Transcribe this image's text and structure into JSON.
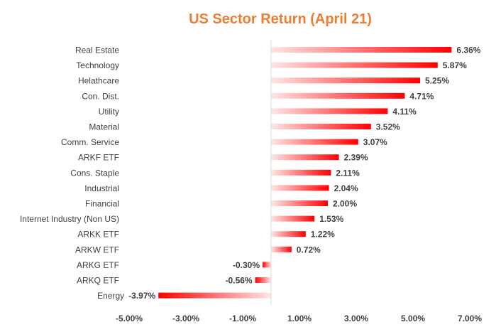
{
  "chart_data": {
    "type": "bar",
    "orientation": "horizontal",
    "title": "US Sector Return (April 21)",
    "categories": [
      "Real Estate",
      "Technology",
      "Helathcare",
      "Con. Dist.",
      "Utility",
      "Material",
      "Comm. Service",
      "ARKF ETF",
      "Cons. Staple",
      "Industrial",
      "Financial",
      "Internet Industry (Non US)",
      "ARKK ETF",
      "ARKW ETF",
      "ARKG ETF",
      "ARKQ ETF",
      "Energy"
    ],
    "values": [
      6.36,
      5.87,
      5.25,
      4.71,
      4.11,
      3.52,
      3.07,
      2.39,
      2.11,
      2.04,
      2.0,
      1.53,
      1.22,
      0.72,
      -0.3,
      -0.56,
      -3.97
    ],
    "value_labels": [
      "6.36%",
      "5.87%",
      "5.25%",
      "4.71%",
      "4.11%",
      "3.52%",
      "3.07%",
      "2.39%",
      "2.11%",
      "2.04%",
      "2.00%",
      "1.53%",
      "1.22%",
      "0.72%",
      "-0.30%",
      "-0.56%",
      "-3.97%"
    ],
    "x_ticks": [
      -5,
      -3,
      -1,
      1,
      3,
      5,
      7
    ],
    "x_tick_labels": [
      "-5.00%",
      "-3.00%",
      "-1.00%",
      "1.00%",
      "3.00%",
      "5.00%",
      "7.00%"
    ],
    "xlim": [
      -5,
      7
    ],
    "xlabel": "",
    "ylabel": "",
    "grid": false,
    "legend": "none",
    "colors": {
      "bar_solid": "#FF0000",
      "bar_light": "#FFE6E6",
      "title": "#ED7D31",
      "text": "#404040",
      "axis": "#D9D9D9"
    }
  }
}
